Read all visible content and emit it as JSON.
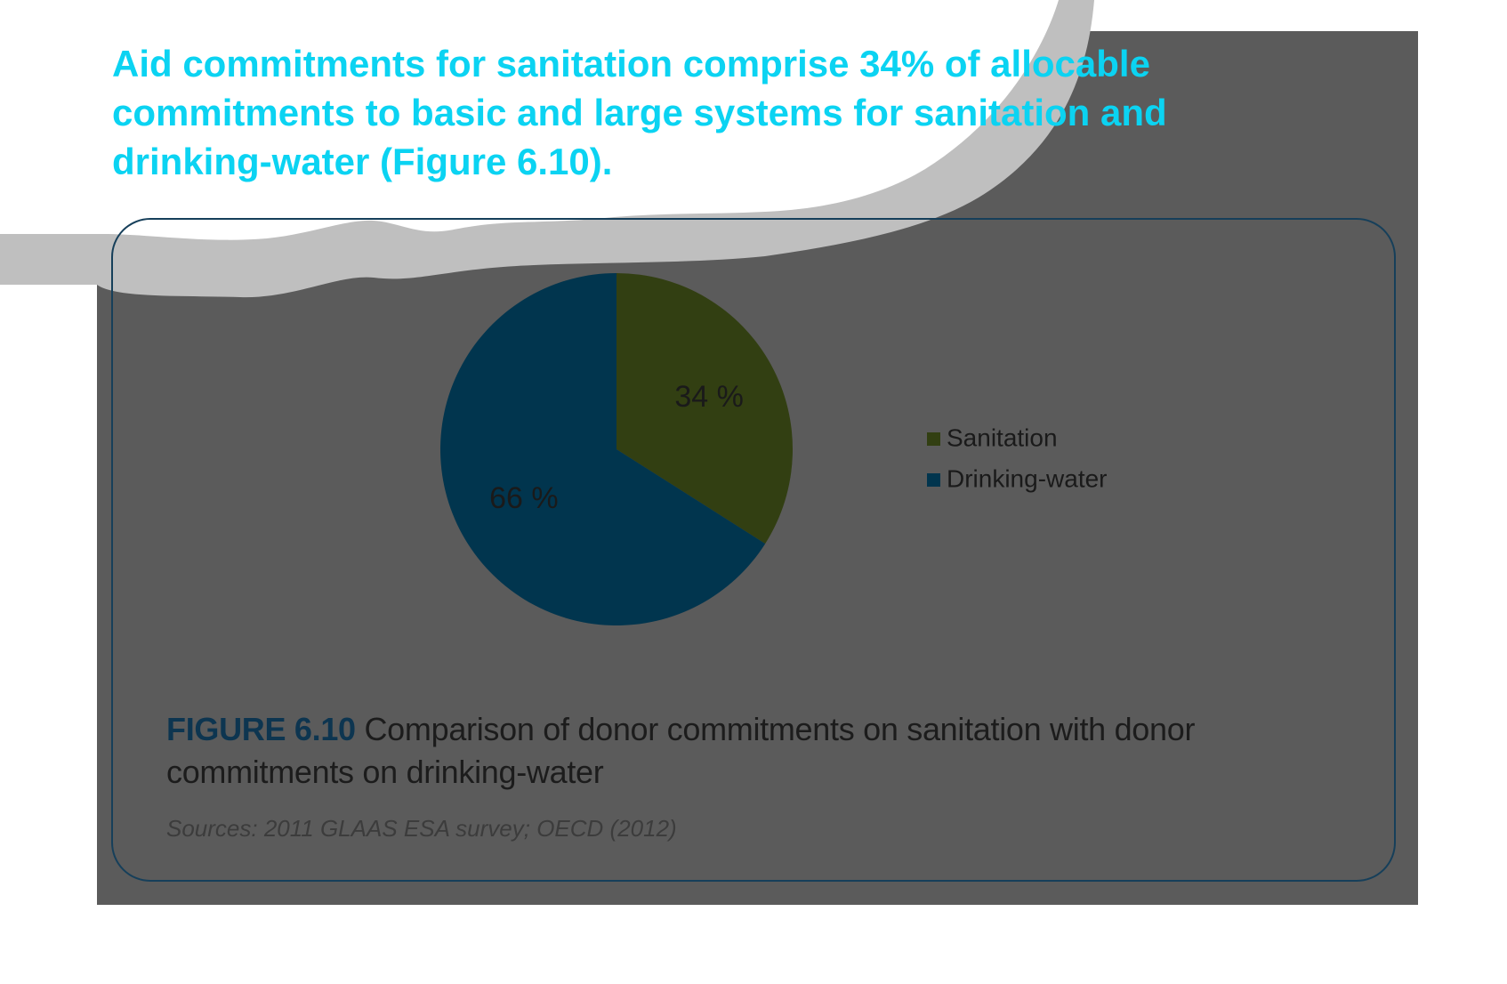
{
  "headline": {
    "lines": [
      "Aid commitments for sanitation comprise 34% of allocable",
      "commitments to basic and large systems for sanitation and",
      "drinking-water (Figure 6.10)."
    ]
  },
  "colors": {
    "headline": "#0bd3f2",
    "panel": "#5b5b5b",
    "wave": "#bfbfbf",
    "card_border": "#163f5a",
    "sanitation": "#323f12",
    "drinking_water": "#01354e",
    "figure_label": "#0d3550"
  },
  "chart_data": {
    "type": "pie",
    "start_angle_deg": 0,
    "direction": "clockwise",
    "slices": [
      {
        "name": "Sanitation",
        "value": 34,
        "label": "34 %",
        "color": "#323f12"
      },
      {
        "name": "Drinking-water",
        "value": 66,
        "label": "66 %",
        "color": "#01354e"
      }
    ],
    "legend": {
      "position": "right",
      "entries": [
        {
          "label": "Sanitation",
          "color": "#323f12"
        },
        {
          "label": "Drinking-water",
          "color": "#01354e"
        }
      ]
    }
  },
  "caption": {
    "figure_label": "FIGURE 6.10",
    "text": " Comparison of donor commitments on sanitation with donor commitments on drinking-water"
  },
  "source": "Sources: 2011 GLAAS ESA survey; OECD (2012)"
}
